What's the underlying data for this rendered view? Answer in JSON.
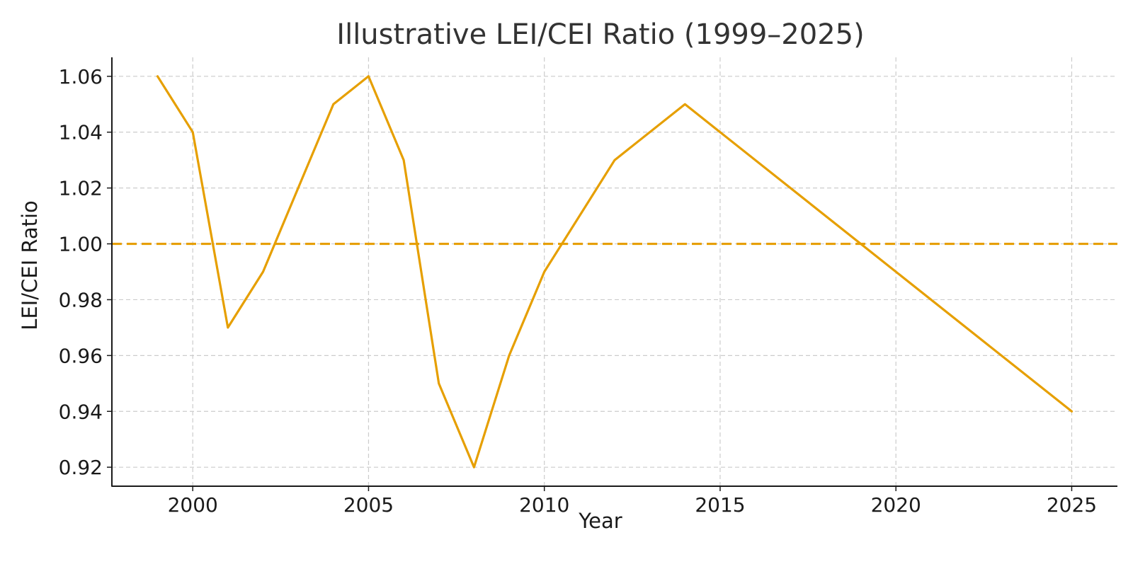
{
  "chart_data": {
    "type": "line",
    "title": "Illustrative LEI/CEI Ratio (1999–2025)",
    "xlabel": "Year",
    "ylabel": "LEI/CEI Ratio",
    "xlim": [
      1997.7,
      2026.3
    ],
    "ylim": [
      0.9132,
      1.0668
    ],
    "x_ticks": [
      2000,
      2005,
      2010,
      2015,
      2020,
      2025
    ],
    "x_tick_labels": [
      "2000",
      "2005",
      "2010",
      "2015",
      "2020",
      "2025"
    ],
    "y_ticks": [
      0.92,
      0.94,
      0.96,
      0.98,
      1.0,
      1.02,
      1.04,
      1.06
    ],
    "y_tick_labels": [
      "0.92",
      "0.94",
      "0.96",
      "0.98",
      "1.00",
      "1.02",
      "1.04",
      "1.06"
    ],
    "grid": true,
    "series": [
      {
        "color": "#E69F00",
        "x": [
          1999,
          2000,
          2001,
          2002,
          2003,
          2004,
          2005,
          2006,
          2007,
          2008,
          2009,
          2010,
          2012,
          2014,
          2025
        ],
        "y": [
          1.06,
          1.04,
          0.97,
          0.99,
          1.02,
          1.05,
          1.06,
          1.03,
          0.95,
          0.92,
          0.96,
          0.99,
          1.03,
          1.05,
          0.94
        ]
      }
    ],
    "reference_line": {
      "y": 1.0,
      "style": "dashed",
      "color": "#E69F00"
    }
  }
}
